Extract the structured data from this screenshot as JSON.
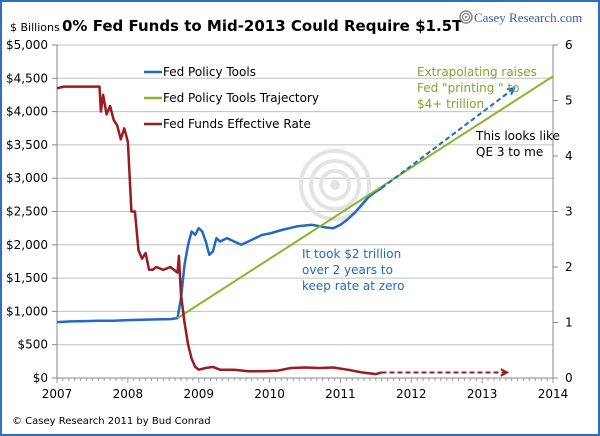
{
  "chart_data": {
    "type": "line",
    "title": "0% Fed Funds to Mid-2013 Could Require $1.5T",
    "ylabel": "$ Billions",
    "y2label": "",
    "xlabel": "",
    "xlim": [
      2007,
      2014
    ],
    "ylim": [
      0,
      5000
    ],
    "y2lim": [
      0,
      6
    ],
    "grid": true,
    "legend_position": "top-left",
    "x_ticks": [
      "2007",
      "2008",
      "2009",
      "2010",
      "2011",
      "2012",
      "2013",
      "2014"
    ],
    "x_tick_values": [
      2007,
      2008,
      2009,
      2010,
      2011,
      2012,
      2013,
      2014
    ],
    "y_ticks": [
      "$0",
      "$500",
      "$1,000",
      "$1,500",
      "$2,000",
      "$2,500",
      "$3,000",
      "$3,500",
      "$4,000",
      "$4,500",
      "$5,000"
    ],
    "y_tick_values": [
      0,
      500,
      1000,
      1500,
      2000,
      2500,
      3000,
      3500,
      4000,
      4500,
      5000
    ],
    "y2_ticks": [
      "0",
      "1",
      "2",
      "3",
      "4",
      "5",
      "6"
    ],
    "y2_tick_values": [
      0,
      1,
      2,
      3,
      4,
      5,
      6
    ],
    "series": [
      {
        "name": "Fed Policy Tools",
        "axis": "left",
        "color": "#1f6bbf",
        "x": [
          2007.0,
          2007.2,
          2007.4,
          2007.6,
          2007.8,
          2008.0,
          2008.2,
          2008.4,
          2008.6,
          2008.7,
          2008.75,
          2008.8,
          2008.85,
          2008.9,
          2008.95,
          2009.0,
          2009.05,
          2009.1,
          2009.15,
          2009.2,
          2009.25,
          2009.3,
          2009.4,
          2009.5,
          2009.6,
          2009.7,
          2009.8,
          2009.9,
          2010.0,
          2010.2,
          2010.4,
          2010.6,
          2010.8,
          2010.9,
          2011.0,
          2011.1,
          2011.2,
          2011.3,
          2011.4,
          2011.5,
          2011.58
        ],
        "values": [
          840,
          850,
          855,
          860,
          860,
          870,
          875,
          880,
          885,
          900,
          1200,
          1700,
          2000,
          2200,
          2150,
          2250,
          2200,
          2050,
          1850,
          1900,
          2100,
          2050,
          2100,
          2050,
          2000,
          2050,
          2100,
          2150,
          2170,
          2230,
          2280,
          2300,
          2260,
          2250,
          2300,
          2380,
          2480,
          2600,
          2720,
          2800,
          2850
        ]
      },
      {
        "name": "Fed Policy Tools Trajectory",
        "axis": "left",
        "color": "#8db52a",
        "x": [
          2008.7,
          2014.0
        ],
        "values": [
          900,
          4530
        ]
      },
      {
        "name": "Fed Funds Effective Rate",
        "axis": "right",
        "color": "#9b1c20",
        "x": [
          2007.0,
          2007.1,
          2007.3,
          2007.5,
          2007.6,
          2007.62,
          2007.65,
          2007.7,
          2007.75,
          2007.8,
          2007.85,
          2007.9,
          2007.95,
          2008.0,
          2008.05,
          2008.1,
          2008.15,
          2008.2,
          2008.25,
          2008.3,
          2008.35,
          2008.4,
          2008.5,
          2008.6,
          2008.7,
          2008.72,
          2008.75,
          2008.8,
          2008.85,
          2008.9,
          2008.95,
          2009.0,
          2009.1,
          2009.2,
          2009.3,
          2009.5,
          2009.7,
          2009.9,
          2010.1,
          2010.3,
          2010.5,
          2010.7,
          2010.9,
          2011.1,
          2011.3,
          2011.5,
          2011.58
        ],
        "values": [
          5.22,
          5.25,
          5.25,
          5.25,
          5.25,
          4.8,
          5.1,
          4.75,
          4.9,
          4.65,
          4.55,
          4.3,
          4.5,
          4.25,
          3.0,
          3.0,
          2.3,
          2.15,
          2.25,
          1.95,
          1.95,
          2.0,
          1.95,
          2.0,
          1.9,
          2.2,
          1.5,
          1.0,
          0.6,
          0.35,
          0.2,
          0.15,
          0.18,
          0.2,
          0.15,
          0.15,
          0.12,
          0.12,
          0.13,
          0.18,
          0.19,
          0.18,
          0.19,
          0.15,
          0.1,
          0.07,
          0.1
        ]
      }
    ],
    "projections": [
      {
        "name": "Fed Policy Tools projection",
        "style": "dashed-arrow",
        "color": "#1f6bbf",
        "x": [
          2011.58,
          2013.45
        ],
        "values": [
          2850,
          4350
        ]
      },
      {
        "name": "Fed Funds Effective Rate projection",
        "style": "dashed-arrow",
        "color": "#9b1c20",
        "axis": "right",
        "x": [
          2011.58,
          2013.35
        ],
        "values": [
          0.1,
          0.1
        ]
      }
    ],
    "annotations": [
      {
        "text": [
          "Extrapolating raises",
          "Fed \"printing \" to",
          "$4+ trillion"
        ],
        "color": "#7aa92a"
      },
      {
        "text": [
          "This looks like",
          "QE 3 to me"
        ],
        "color": "#000000"
      },
      {
        "text": [
          "It took $2 trillion",
          "over 2 years to",
          "keep rate at zero"
        ],
        "color": "#1f6bbf"
      }
    ]
  },
  "header": {
    "unit_label": "$ Billions",
    "title": "0% Fed Funds to Mid-2013 Could Require $1.5T",
    "brand": "Casey Research.com"
  },
  "legend": [
    "Fed Policy Tools",
    "Fed Policy Tools Trajectory",
    "Fed Funds Effective Rate"
  ],
  "footer": {
    "credit": "© Casey Research 2011 by Bud Conrad"
  },
  "colors": {
    "frame": "#2a6fc0",
    "grid": "#c0c0c0"
  }
}
